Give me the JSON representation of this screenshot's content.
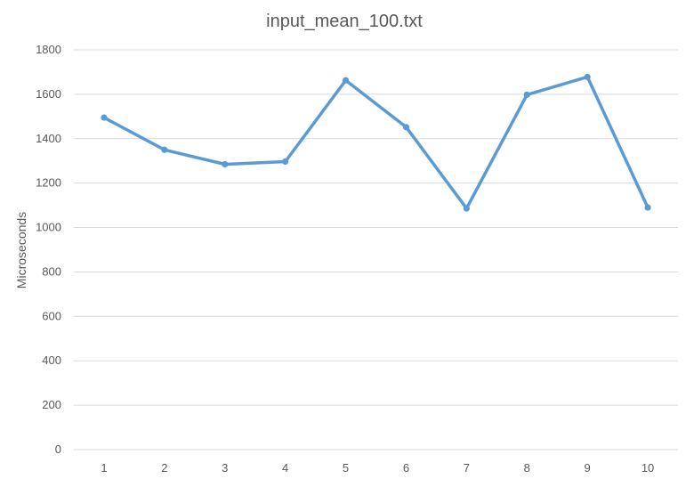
{
  "chart_data": {
    "type": "line",
    "title": "input_mean_100.txt",
    "xlabel": "",
    "ylabel": "Microseconds",
    "categories": [
      "1",
      "2",
      "3",
      "4",
      "5",
      "6",
      "7",
      "8",
      "9",
      "10"
    ],
    "series": [
      {
        "values": [
          1495,
          1350,
          1285,
          1297,
          1663,
          1452,
          1086,
          1598,
          1678,
          1090
        ]
      }
    ],
    "ylim": [
      0,
      1800
    ],
    "yticks": [
      "0",
      "200",
      "400",
      "600",
      "800",
      "1000",
      "1200",
      "1400",
      "1600",
      "1800"
    ],
    "grid": true,
    "legend": "none",
    "colors": {
      "series": "#5b9bd5",
      "grid": "#d9d9d9",
      "text": "#595959"
    }
  }
}
